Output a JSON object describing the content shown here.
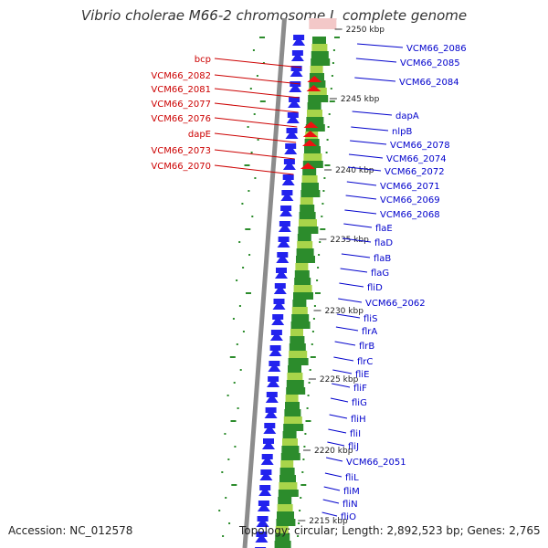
{
  "title": "Vibrio cholerae M66-2 chromosome I, complete genome",
  "accession": "Accession: NC_012578",
  "topology": "Topology: circular; Length: 2,892,523 bp; Genes: 2,765",
  "colors": {
    "forward_genes": "#2222ee",
    "reverse_genes": "#ee1111",
    "label_forward": "#0000cc",
    "label_reverse": "#cc0000",
    "backbone": "#8c8c8c",
    "gc_positive": "#2c8c2c",
    "gc_skew": "#a8d44a"
  },
  "scale_labels": [
    "2250 kbp",
    "2245 kbp",
    "2240 kbp",
    "2235 kbp",
    "2230 kbp",
    "2225 kbp",
    "2220 kbp",
    "2215 kbp"
  ],
  "reverse_genes": [
    "bcp",
    "VCM66_2082",
    "VCM66_2081",
    "VCM66_2077",
    "VCM66_2076",
    "dapE",
    "VCM66_2073",
    "VCM66_2070"
  ],
  "forward_genes": [
    "VCM66_2086",
    "VCM66_2085",
    "VCM66_2084",
    "dapA",
    "nlpB",
    "VCM66_2078",
    "VCM66_2074",
    "VCM66_2072",
    "VCM66_2071",
    "VCM66_2069",
    "VCM66_2068",
    "flaE",
    "flaD",
    "flaB",
    "flaG",
    "fliD",
    "VCM66_2062",
    "fliS",
    "flrA",
    "flrB",
    "flrC",
    "fliE",
    "fliF",
    "fliG",
    "fliH",
    "fliI",
    "fliJ",
    "VCM66_2051",
    "fliL",
    "fliM",
    "fliN",
    "fliO"
  ]
}
